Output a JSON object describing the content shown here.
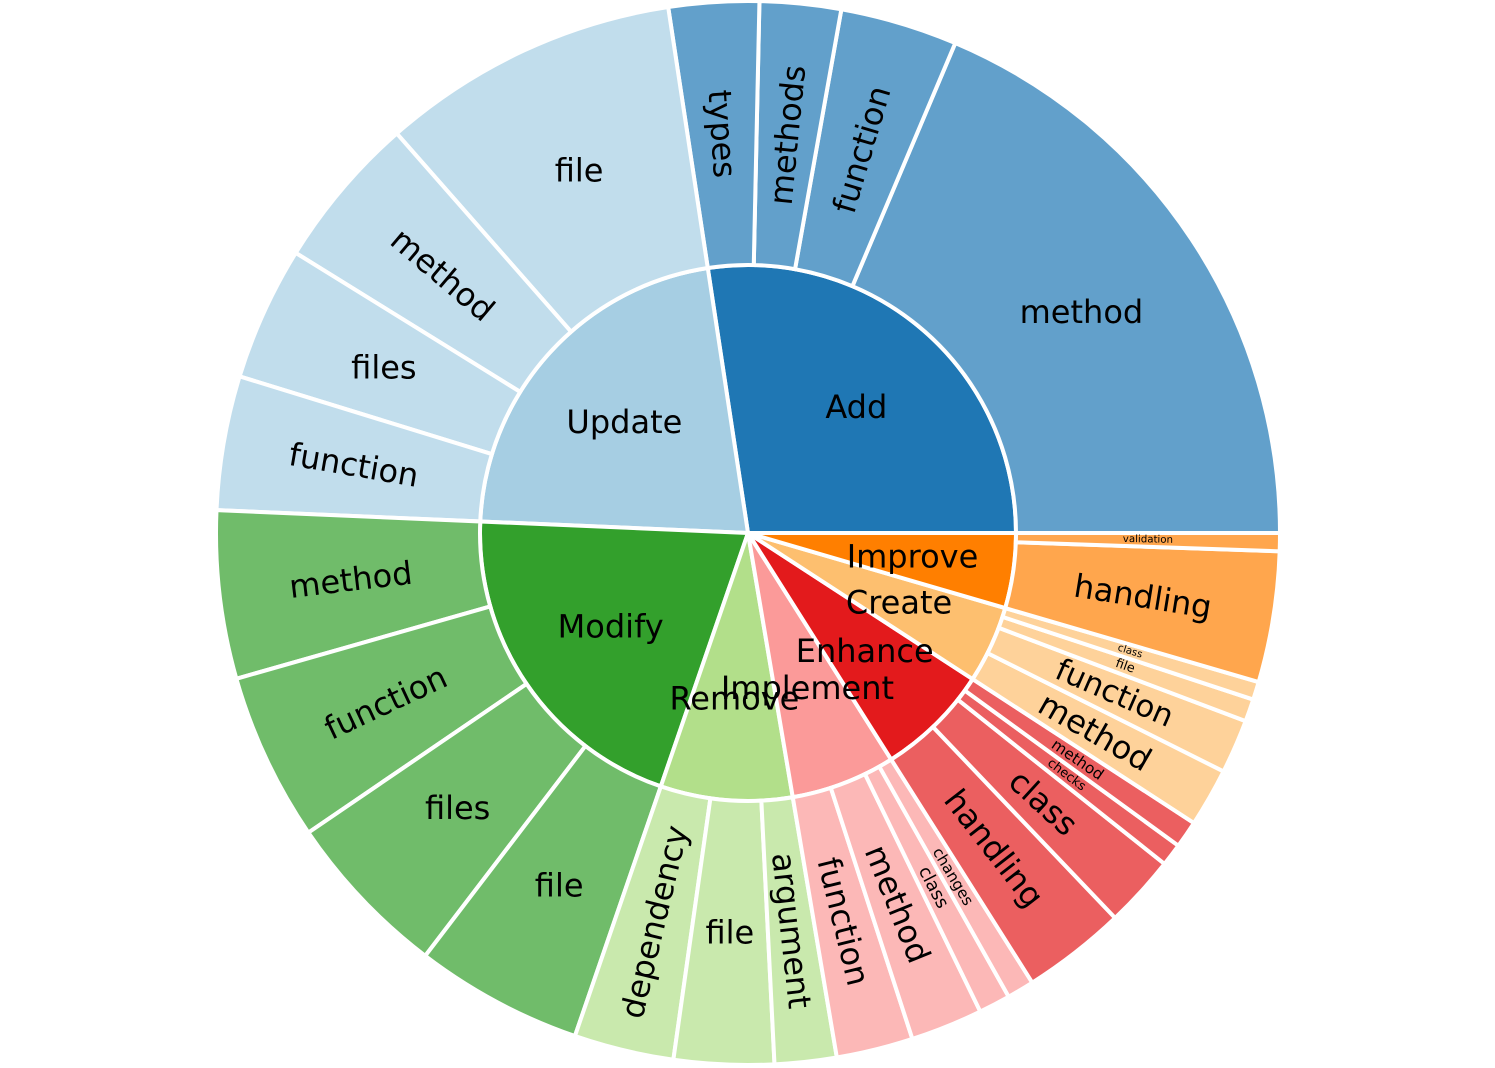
{
  "chart_data": {
    "type": "sunburst",
    "title": "",
    "children": [
      {
        "name": "Add",
        "value": 200,
        "color": "#1f77b4",
        "childColor": "#62a0cb",
        "labelColor": "#000000",
        "children": [
          {
            "name": "method",
            "value": 136
          },
          {
            "name": "function",
            "value": 26
          },
          {
            "name": "methods",
            "value": 18
          },
          {
            "name": "types",
            "value": 20
          }
        ]
      },
      {
        "name": "Update",
        "value": 160,
        "color": "#a6cee3",
        "childColor": "#c1ddec",
        "labelColor": "#000000",
        "children": [
          {
            "name": "file",
            "value": 58
          },
          {
            "name": "method",
            "value": 30
          },
          {
            "name": "files",
            "value": 26
          },
          {
            "name": "function",
            "value": 26
          }
        ]
      },
      {
        "name": "Modify",
        "value": 149,
        "color": "#33a02c",
        "childColor": "#70bc6a",
        "labelColor": "#000000",
        "children": [
          {
            "name": "method",
            "value": 25
          },
          {
            "name": "function",
            "value": 25
          },
          {
            "name": "files",
            "value": 25
          },
          {
            "name": "file",
            "value": 25
          }
        ]
      },
      {
        "name": "Remove",
        "value": 58,
        "color": "#b2df8a",
        "childColor": "#c9e9ad",
        "labelColor": "#000000",
        "children": [
          {
            "name": "dependency",
            "value": 21
          },
          {
            "name": "file",
            "value": 21
          },
          {
            "name": "argument",
            "value": 13
          }
        ]
      },
      {
        "name": "Implement",
        "value": 46,
        "color": "#fb9a99",
        "childColor": "#fcb8b7",
        "labelColor": "#000000",
        "children": [
          {
            "name": "function",
            "value": 17
          },
          {
            "name": "method",
            "value": 16
          },
          {
            "name": "class",
            "value": 7
          },
          {
            "name": "changes",
            "value": 6
          }
        ]
      },
      {
        "name": "Enhance",
        "value": 50,
        "color": "#e31a1c",
        "childColor": "#eb5f60",
        "labelColor": "#000000",
        "children": [
          {
            "name": "handling",
            "value": 23
          },
          {
            "name": "class",
            "value": 16
          },
          {
            "name": "checks",
            "value": 5
          },
          {
            "name": "method",
            "value": 6
          }
        ]
      },
      {
        "name": "Create",
        "value": 34,
        "color": "#fdbf6f",
        "childColor": "#fed29a",
        "labelColor": "#000000",
        "children": [
          {
            "name": "method",
            "value": 13
          },
          {
            "name": "function",
            "value": 12
          },
          {
            "name": "file",
            "value": 5
          },
          {
            "name": "class",
            "value": 4
          }
        ]
      },
      {
        "name": "Improve",
        "value": 33,
        "color": "#ff7f00",
        "childColor": "#ffa64d",
        "labelColor": "#000000",
        "children": [
          {
            "name": "handling",
            "value": 29
          },
          {
            "name": "validation",
            "value": 4
          }
        ]
      }
    ]
  }
}
